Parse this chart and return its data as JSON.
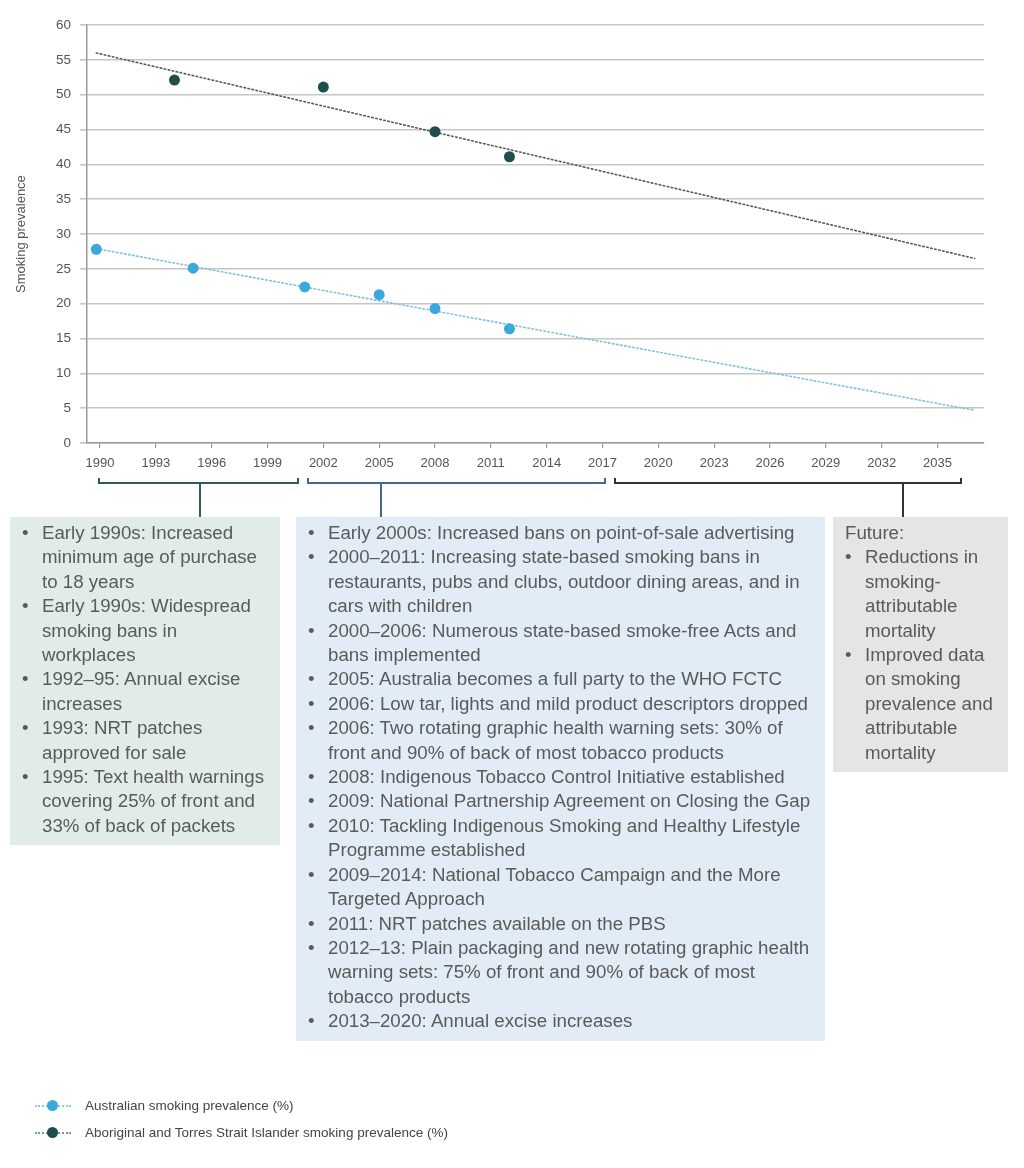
{
  "chart_data": {
    "type": "scatter",
    "ylabel": "Smoking prevalence",
    "xlim": [
      1989.3,
      2037.5
    ],
    "xticks": [
      1990,
      1993,
      1996,
      1999,
      2002,
      2005,
      2008,
      2011,
      2014,
      2017,
      2020,
      2023,
      2026,
      2029,
      2032,
      2035
    ],
    "ylim": [
      0,
      60
    ],
    "yticks": [
      0,
      5,
      10,
      15,
      20,
      25,
      30,
      35,
      40,
      45,
      50,
      55,
      60
    ],
    "grid": "y",
    "legend": "bottom left",
    "marker": "circle",
    "series": [
      {
        "name": "Australian smoking prevalence (%)",
        "type": "scatter",
        "color": "#3aa8dc",
        "x": [
          1989.8,
          1995,
          2001,
          2005,
          2008,
          2012
        ],
        "values": [
          27.8,
          25.1,
          22.4,
          21.3,
          19.3,
          16.4
        ]
      },
      {
        "name": "Aboriginal and Torres Strait Islander smoking prevalence (%)",
        "type": "scatter",
        "color": "#1f4e4d",
        "x": [
          1994,
          2002,
          2008,
          2012
        ],
        "values": [
          52.1,
          51.1,
          44.7,
          41.1
        ]
      },
      {
        "type": "line",
        "color": "#7fc1de",
        "line_style": "dotted",
        "marker": "none",
        "x": [
          1989.8,
          2037
        ],
        "values": [
          27.9,
          4.7
        ]
      },
      {
        "type": "line",
        "color": "#4d5b5c",
        "line_style": "dotted",
        "marker": "none",
        "x": [
          1989.8,
          2037
        ],
        "values": [
          56.0,
          26.5
        ]
      }
    ],
    "annotations": [
      "• Early 1990s: Increased minimum age of purchase to 18 years\n• Early 1990s: Widespread smoking bans in workplaces\n• 1992–95: Annual excise increases\n• 1993: NRT patches approved for sale\n• 1995: Text health warnings covering 25% of front and 33% of back of packets",
      "• Early 2000s: Increased bans on point-of-sale advertising\n• 2000–2011: Increasing state-based smoking bans in restaurants, pubs and clubs, outdoor dining areas, and in cars with children\n• 2000–2006: Numerous state-based smoke-free Acts and bans implemented\n• 2005: Australia becomes a full party to the WHO FCTC\n• 2006: Low tar, lights and mild product descriptors dropped\n• 2006: Two rotating graphic health warning sets: 30% of front and 90% of back of most tobacco products\n• 2008: Indigenous Tobacco Control Initiative established\n• 2009: National Partnership Agreement on Closing the Gap\n• 2010: Tackling Indigenous Smoking and Healthy Lifestyle Programme established\n• 2009–2014: National Tobacco Campaign and the More Targeted Approach\n• 2011: NRT patches available on the PBS\n• 2012–13: Plain packaging and new rotating graphic health warning sets: 75% of front and 90% of back of most tobacco products\n• 2013–2020: Annual excise increases",
      "Future:\n• Reductions in smoking-attributable mortality\n• Improved data on smoking prevalence and attributable mortality"
    ]
  }
}
